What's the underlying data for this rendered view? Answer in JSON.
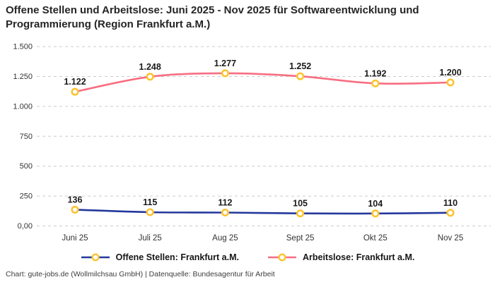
{
  "title": "Offene Stellen und Arbeitslose: Juni 2025 - Nov 2025 für Softwareentwicklung und Programmierung (Region Frankfurt a.M.)",
  "footer": "Chart: gute-jobs.de (Wollmilchsau GmbH) | Datenquelle: Bundesagentur für Arbeit",
  "colors": {
    "background": "#ffffff",
    "grid": "#cccccc",
    "title_text": "#252525",
    "tick_text": "#333333",
    "data_label_text": "#1a1a1a",
    "marker_fill": "#ffffff",
    "marker_stroke": "#fcc32d",
    "series_blue": "#24389c",
    "series_pink": "#f76e81"
  },
  "chart_data": {
    "type": "line",
    "title": "Offene Stellen und Arbeitslose: Juni 2025 - Nov 2025 für Softwareentwicklung und Programmierung (Region Frankfurt a.M.)",
    "categories": [
      "Juni 25",
      "Juli 25",
      "Aug 25",
      "Sept 25",
      "Okt 25",
      "Nov 25"
    ],
    "series": [
      {
        "name": "Offene Stellen: Frankfurt a.M.",
        "color": "#24389c",
        "values": [
          136,
          115,
          112,
          105,
          104,
          110
        ],
        "labels": [
          "136",
          "115",
          "112",
          "105",
          "104",
          "110"
        ]
      },
      {
        "name": "Arbeitslose: Frankfurt a.M.",
        "color": "#f76e81",
        "values": [
          1122,
          1248,
          1277,
          1252,
          1192,
          1200
        ],
        "labels": [
          "1.122",
          "1.248",
          "1.277",
          "1.252",
          "1.192",
          "1.200"
        ]
      }
    ],
    "xlabel": "",
    "ylabel": "",
    "ylim": [
      0,
      1500
    ],
    "yticks": [
      {
        "value": 0,
        "label": "0,00"
      },
      {
        "value": 250,
        "label": "250"
      },
      {
        "value": 500,
        "label": "500"
      },
      {
        "value": 750,
        "label": "750"
      },
      {
        "value": 1000,
        "label": "1.000"
      },
      {
        "value": 1250,
        "label": "1.250"
      },
      {
        "value": 1500,
        "label": "1.500"
      }
    ],
    "grid": "horizontal-dashed",
    "legend_position": "bottom",
    "marker_style": "circle-yellow-stroke-white-fill"
  }
}
